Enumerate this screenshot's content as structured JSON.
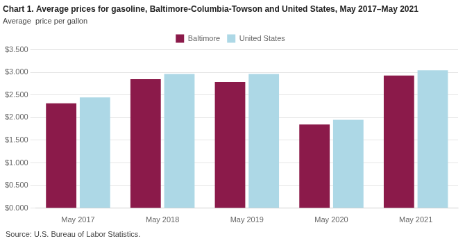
{
  "chart_data": {
    "type": "bar",
    "title": "Chart 1. Average prices for gasoline, Baltimore-Columbia-Towson and United States, May 2017–May 2021",
    "ylabel": "Average  price per gallon",
    "annotations": [
      "Source: U.S. Bureau of Labor Statistics."
    ],
    "categories": [
      "May 2017",
      "May 2018",
      "May 2019",
      "May 2020",
      "May 2021"
    ],
    "series": [
      {
        "name": "Baltimore",
        "color": "#8B1A4A",
        "values": [
          2.316,
          2.848,
          2.789,
          1.848,
          2.929
        ]
      },
      {
        "name": "United States",
        "color": "#ADD8E6",
        "values": [
          2.446,
          2.965,
          2.964,
          1.952,
          3.045
        ]
      }
    ],
    "ylim": [
      0,
      3.5
    ],
    "yticks": [
      {
        "value": 0.0,
        "label": "$0.000"
      },
      {
        "value": 0.5,
        "label": "$0.500"
      },
      {
        "value": 1.0,
        "label": "$1.000"
      },
      {
        "value": 1.5,
        "label": "$1.500"
      },
      {
        "value": 2.0,
        "label": "$2.000"
      },
      {
        "value": 2.5,
        "label": "$2.500"
      },
      {
        "value": 3.0,
        "label": "$3.000"
      },
      {
        "value": 3.5,
        "label": "$3.500"
      }
    ],
    "grid": true,
    "legend": "top"
  }
}
